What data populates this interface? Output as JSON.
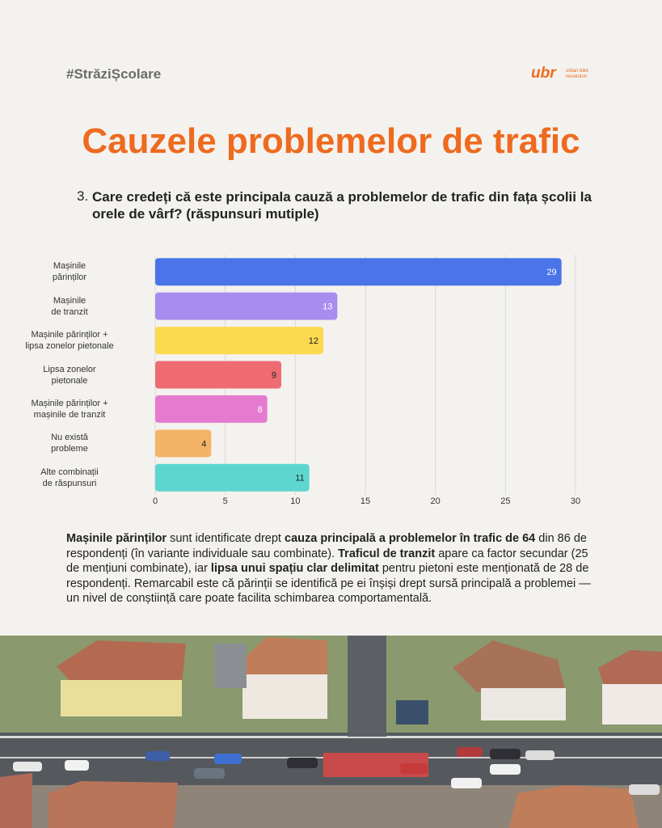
{
  "header": {
    "hashtag": "#StrăziȘcolare",
    "logo": "ubr",
    "logo_caption": "urban bike revolution"
  },
  "title": "Cauzele problemelor de trafic",
  "question": {
    "number": "3.",
    "text": "Care credeți că este principala cauză a problemelor de trafic din fața școlii la orele de vârf? (răspunsuri mutiple)"
  },
  "chart_data": {
    "type": "barh",
    "categories": [
      "Mașinile\npărinților",
      "Mașinile\nde tranzit",
      "Mașinile părinților +\nlipsa zonelor pietonale",
      "Lipsa zonelor\npietonale",
      "Mașinile părinților +\nmașinile de tranzit",
      "Nu există\nprobleme",
      "Alte combinații\nde răspunsuri"
    ],
    "values": [
      29,
      13,
      12,
      9,
      8,
      4,
      11
    ],
    "colors": [
      "#4a74e8",
      "#a98cf0",
      "#fcd94f",
      "#ee6b72",
      "#e57bd0",
      "#f4b468",
      "#5dd6d0"
    ],
    "value_label_colors": [
      "#ffffff",
      "#ffffff",
      "#222222",
      "#222222",
      "#ffffff",
      "#222222",
      "#222222"
    ],
    "xlim": [
      0,
      30
    ],
    "xticks": [
      0,
      5,
      10,
      15,
      20,
      25,
      30
    ],
    "grid": true
  },
  "summary": [
    {
      "text": "Mașinile părinților",
      "bold": true
    },
    {
      "text": " sunt identificate drept ",
      "bold": false
    },
    {
      "text": "cauza principală a problemelor în trafic de 64",
      "bold": true
    },
    {
      "text": " din 86 de respondenți (în variante individuale sau combinate). ",
      "bold": false
    },
    {
      "text": "Traficul de tranzit",
      "bold": true
    },
    {
      "text": " apare ca factor secundar (25 de mențiuni combinate), iar ",
      "bold": false
    },
    {
      "text": "lipsa unui spațiu clar delimitat",
      "bold": true
    },
    {
      "text": " pentru pietoni este menționată de 28 de respondenți. Remarcabil este că părinții se identifică pe ei înșiși drept sursă principală a problemei — un nivel de conștiință care poate facilita schimbarea comportamentală.",
      "bold": false
    }
  ]
}
